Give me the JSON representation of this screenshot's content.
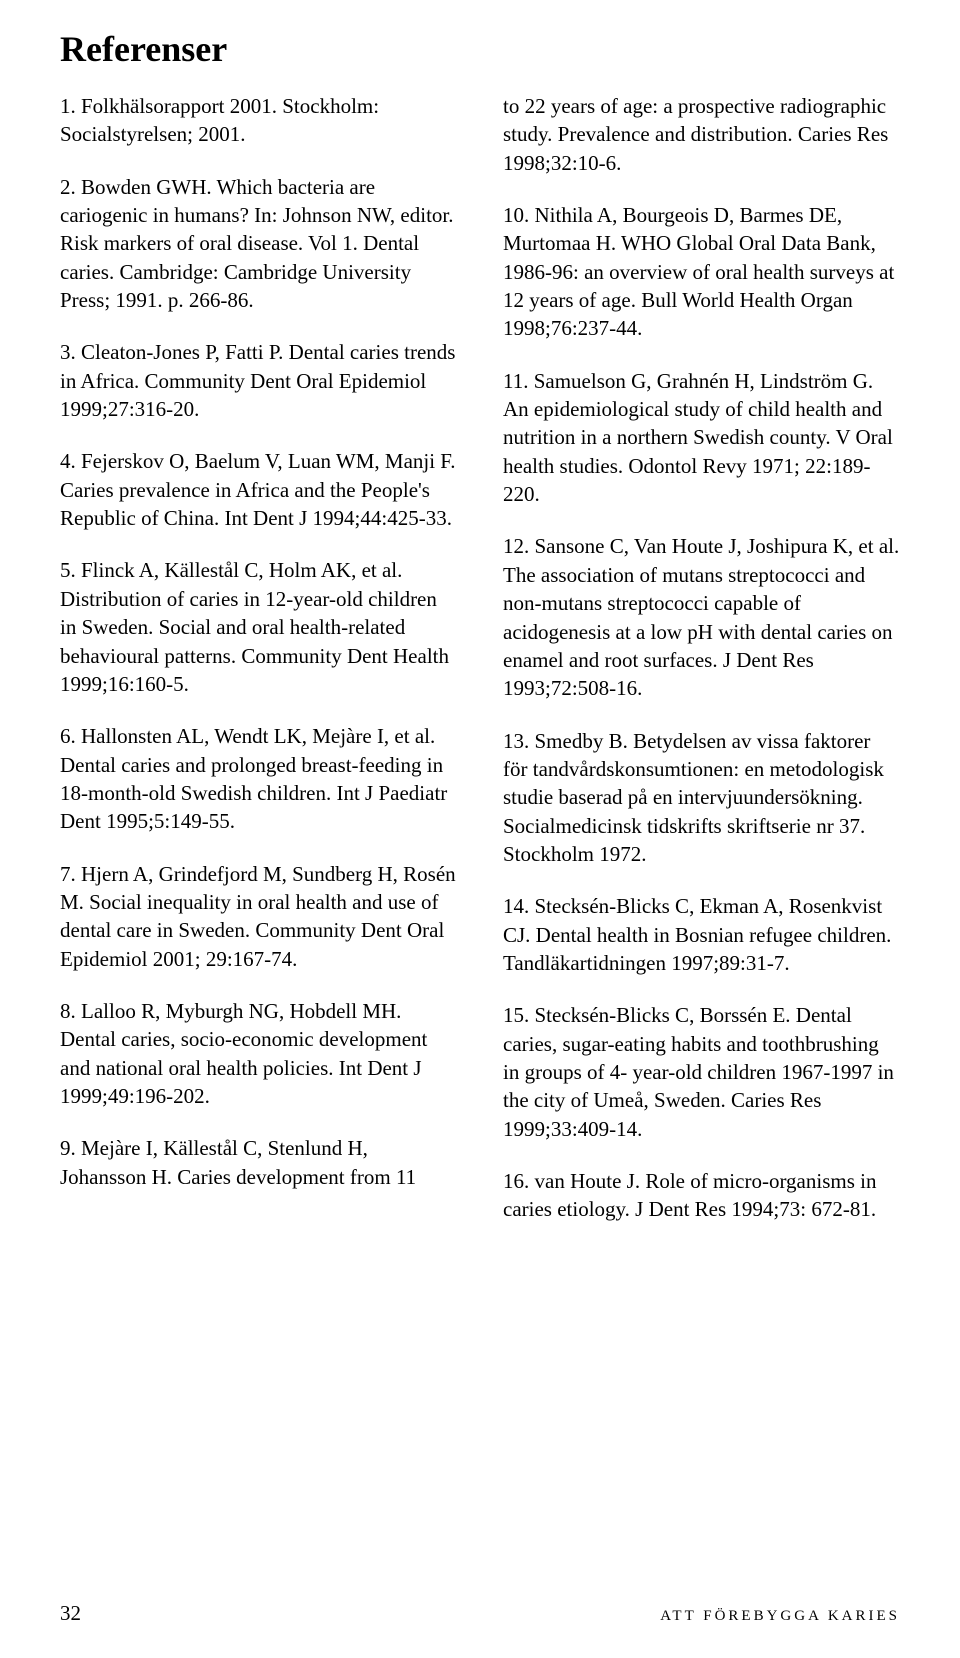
{
  "heading": "Referenser",
  "left_refs": [
    "1. Folkhälsorapport 2001. Stockholm: Socialstyrelsen; 2001.",
    "2. Bowden GWH. Which bacteria are cariogenic in humans? In: Johnson NW, editor. Risk markers of oral disease. Vol 1. Dental caries. Cambridge: Cambridge University Press; 1991. p. 266-86.",
    "3. Cleaton-Jones P, Fatti P. Dental caries trends in Africa. Community Dent Oral Epidemiol 1999;27:316-20.",
    "4. Fejerskov O, Baelum V, Luan WM, Manji F. Caries prevalence in Africa and the People's Republic of China. Int Dent J 1994;44:425-33.",
    "5. Flinck A, Källestål C, Holm AK, et al. Distribution of caries in 12-year-old children in Sweden. Social and oral health-related behavioural patterns. Community Dent Health 1999;16:160-5.",
    "6. Hallonsten AL, Wendt LK, Mejàre I, et al. Dental caries and prolonged breast-feeding in 18-month-old Swedish children. Int J Paediatr Dent 1995;5:149-55.",
    "7. Hjern A, Grindefjord M, Sundberg H, Rosén M. Social inequality in oral health and use of dental care in Sweden. Community Dent Oral Epidemiol 2001; 29:167-74.",
    "8. Lalloo R, Myburgh NG, Hobdell MH. Dental caries, socio-economic development and national oral health policies. Int Dent J 1999;49:196-202.",
    "9. Mejàre I, Källestål C, Stenlund H, Johansson H. Caries development from 11"
  ],
  "right_refs": [
    "to 22 years of age: a prospective radiographic study. Prevalence and distribution. Caries Res 1998;32:10-6.",
    "10. Nithila A, Bourgeois D, Barmes DE, Murtomaa H. WHO Global Oral Data Bank, 1986-96: an overview of oral health surveys at 12 years of age. Bull World Health Organ 1998;76:237-44.",
    "11. Samuelson G, Grahnén H, Lindström G. An epidemiological study of child health and nutrition in a northern Swedish county. V Oral health studies. Odontol Revy 1971; 22:189-220.",
    "12. Sansone C, Van Houte J, Joshipura K, et al. The association of mutans streptococci and non-mutans streptococci capable of acidogenesis at a low pH with dental caries on enamel and root surfaces. J Dent Res 1993;72:508-16.",
    "13. Smedby B. Betydelsen av vissa faktorer för tandvårdskonsumtionen: en metodologisk studie baserad på en intervjuundersökning. Socialmedicinsk tidskrifts skriftserie nr 37. Stockholm 1972.",
    "14. Stecksén-Blicks C, Ekman A, Rosenkvist CJ. Dental health in Bosnian refugee children. Tandläkartidningen 1997;89:31-7.",
    "15. Stecksén-Blicks C, Borssén E. Dental caries, sugar-eating habits and toothbrushing in groups of 4- year-old children 1967-1997 in the city of Umeå, Sweden. Caries Res 1999;33:409-14.",
    "16. van Houte J. Role of micro-organisms in caries etiology. J Dent Res 1994;73: 672-81."
  ],
  "footer": {
    "page_number": "32",
    "book_title": "ATT FÖREBYGGA KARIES"
  }
}
